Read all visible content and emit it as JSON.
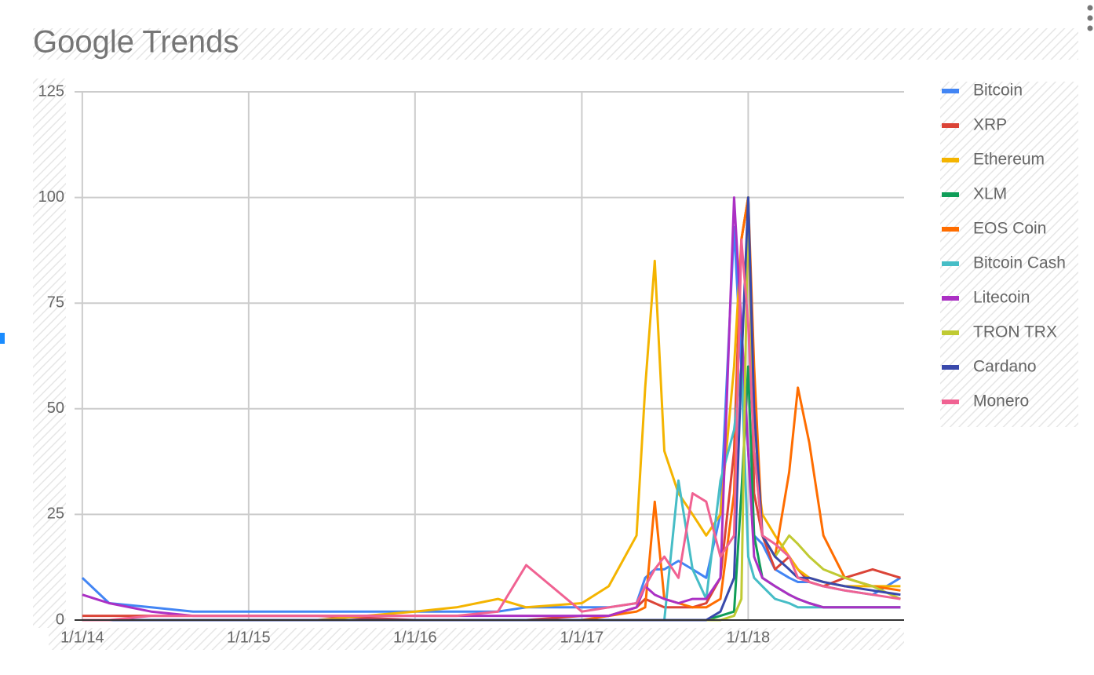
{
  "chart_data": {
    "type": "line",
    "title": "Google Trends",
    "x": [
      "2014-01-01",
      "2014-03-01",
      "2014-06-01",
      "2014-09-01",
      "2015-01-01",
      "2015-06-01",
      "2016-01-01",
      "2016-04-01",
      "2016-07-01",
      "2016-09-01",
      "2017-01-01",
      "2017-03-01",
      "2017-05-01",
      "2017-05-20",
      "2017-06-10",
      "2017-07-01",
      "2017-08-01",
      "2017-09-01",
      "2017-10-01",
      "2017-11-01",
      "2017-12-01",
      "2017-12-17",
      "2018-01-01",
      "2018-01-14",
      "2018-02-01",
      "2018-03-01",
      "2018-04-01",
      "2018-04-20",
      "2018-05-15",
      "2018-06-15",
      "2018-08-01",
      "2018-10-01",
      "2018-12-01"
    ],
    "xlim": [
      "2013-12-15",
      "2018-12-09"
    ],
    "xticks": [
      {
        "value": "2014-01-01",
        "label": "1/1/14"
      },
      {
        "value": "2015-01-01",
        "label": "1/1/15"
      },
      {
        "value": "2016-01-01",
        "label": "1/1/16"
      },
      {
        "value": "2017-01-01",
        "label": "1/1/17"
      },
      {
        "value": "2018-01-01",
        "label": "1/1/18"
      }
    ],
    "ylim": [
      0,
      125
    ],
    "yticks": [
      0,
      25,
      50,
      75,
      100,
      125
    ],
    "grid": true,
    "legend": "right",
    "series": [
      {
        "name": "Bitcoin",
        "color": "#4285f4",
        "values": [
          10,
          4,
          3,
          2,
          2,
          2,
          2,
          2,
          2,
          3,
          3,
          3,
          4,
          10,
          12,
          12,
          14,
          12,
          10,
          25,
          93,
          60,
          40,
          20,
          18,
          12,
          10,
          9,
          9,
          8,
          7,
          6,
          10
        ]
      },
      {
        "name": "XRP",
        "color": "#db4437",
        "values": [
          1,
          1,
          1,
          1,
          1,
          1,
          0,
          0,
          0,
          0,
          1,
          1,
          3,
          5,
          4,
          3,
          3,
          3,
          4,
          10,
          40,
          90,
          100,
          30,
          20,
          12,
          15,
          12,
          9,
          8,
          10,
          12,
          10
        ]
      },
      {
        "name": "Ethereum",
        "color": "#f4b400",
        "values": [
          0,
          0,
          0,
          0,
          0,
          0,
          2,
          3,
          5,
          3,
          4,
          8,
          20,
          55,
          85,
          40,
          30,
          25,
          20,
          25,
          60,
          90,
          100,
          40,
          25,
          20,
          15,
          12,
          10,
          9,
          8,
          8,
          8
        ]
      },
      {
        "name": "XLM",
        "color": "#0f9d58",
        "values": [
          0,
          0,
          0,
          0,
          0,
          0,
          0,
          0,
          0,
          0,
          0,
          0,
          0,
          0,
          0,
          0,
          0,
          0,
          0,
          1,
          2,
          30,
          60,
          20,
          10,
          8,
          6,
          5,
          4,
          3,
          3,
          3,
          3
        ]
      },
      {
        "name": "EOS Coin",
        "color": "#ff6d00",
        "values": [
          0,
          0,
          0,
          0,
          0,
          0,
          0,
          0,
          0,
          0,
          0,
          1,
          2,
          3,
          28,
          5,
          4,
          3,
          3,
          5,
          30,
          90,
          100,
          60,
          20,
          15,
          35,
          55,
          42,
          20,
          10,
          8,
          7
        ]
      },
      {
        "name": "Bitcoin Cash",
        "color": "#46bdc6",
        "values": [
          0,
          0,
          0,
          0,
          0,
          0,
          0,
          0,
          0,
          0,
          0,
          0,
          0,
          0,
          0,
          0,
          33,
          12,
          5,
          33,
          45,
          60,
          15,
          10,
          8,
          5,
          4,
          3,
          3,
          3,
          3,
          3,
          3
        ]
      },
      {
        "name": "Litecoin",
        "color": "#ab30c4",
        "values": [
          6,
          4,
          2,
          1,
          1,
          1,
          1,
          1,
          1,
          1,
          1,
          1,
          3,
          8,
          6,
          5,
          4,
          5,
          5,
          10,
          100,
          70,
          40,
          15,
          10,
          8,
          6,
          5,
          4,
          3,
          3,
          3,
          3
        ]
      },
      {
        "name": "TRON TRX",
        "color": "#c0ca33",
        "values": [
          0,
          0,
          0,
          0,
          0,
          0,
          0,
          0,
          0,
          0,
          0,
          0,
          0,
          0,
          0,
          0,
          0,
          0,
          0,
          0,
          1,
          5,
          100,
          40,
          20,
          15,
          20,
          18,
          15,
          12,
          10,
          8,
          5
        ]
      },
      {
        "name": "Cardano",
        "color": "#3949ab",
        "values": [
          0,
          0,
          0,
          0,
          0,
          0,
          0,
          0,
          0,
          0,
          0,
          0,
          0,
          0,
          0,
          0,
          0,
          0,
          0,
          2,
          10,
          60,
          100,
          50,
          20,
          15,
          12,
          10,
          10,
          9,
          8,
          7,
          6
        ]
      },
      {
        "name": "Monero",
        "color": "#f06292",
        "values": [
          0,
          0,
          1,
          1,
          1,
          1,
          1,
          1,
          2,
          13,
          2,
          3,
          4,
          8,
          12,
          15,
          10,
          30,
          28,
          15,
          20,
          90,
          70,
          40,
          20,
          18,
          15,
          10,
          9,
          8,
          7,
          6,
          5
        ]
      }
    ]
  }
}
